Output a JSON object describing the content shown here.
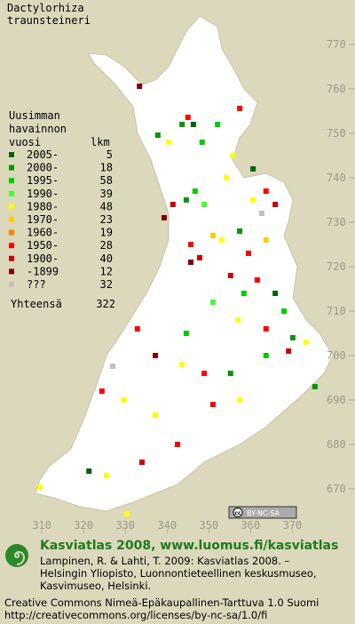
{
  "map": {
    "title": [
      "Dactylorhiza",
      "traunsteineri"
    ],
    "xlim": [
      300,
      385
    ],
    "ylim": [
      662,
      780
    ],
    "xticks": [
      310,
      320,
      330,
      340,
      350,
      360,
      370
    ],
    "yticks": [
      670,
      680,
      690,
      700,
      710,
      720,
      730,
      740,
      750,
      760,
      770
    ],
    "legend": {
      "heading": [
        "Uusimman",
        "havainnon"
      ],
      "year_header": "vuosi",
      "count_header": "lkm",
      "classes": [
        {
          "label": "2005-",
          "count": 5,
          "color": "#006400"
        },
        {
          "label": "2000-",
          "count": 18,
          "color": "#009900"
        },
        {
          "label": "1995-",
          "count": 58,
          "color": "#00cc00"
        },
        {
          "label": "1990-",
          "count": 39,
          "color": "#44ff33"
        },
        {
          "label": "1980-",
          "count": 48,
          "color": "#ffff00"
        },
        {
          "label": "1970-",
          "count": 23,
          "color": "#ffcc00"
        },
        {
          "label": "1960-",
          "count": 19,
          "color": "#ff8000"
        },
        {
          "label": "1950-",
          "count": 28,
          "color": "#ff0000"
        },
        {
          "label": "1900-",
          "count": 40,
          "color": "#cc0000"
        },
        {
          "label": "-1899",
          "count": 12,
          "color": "#800000"
        },
        {
          "label": "???",
          "count": 32,
          "color": "#c0c0c0"
        }
      ],
      "total_label": "Yhteensä",
      "total": 322
    },
    "observations": [
      {
        "x": 333.4,
        "y": 760.6,
        "class": 9
      },
      {
        "x": 345.0,
        "y": 753.6,
        "class": 7
      },
      {
        "x": 343.6,
        "y": 752.0,
        "class": 1
      },
      {
        "x": 346.3,
        "y": 752.0,
        "class": 0
      },
      {
        "x": 357.4,
        "y": 755.6,
        "class": 7
      },
      {
        "x": 352.1,
        "y": 752.0,
        "class": 2
      },
      {
        "x": 340.4,
        "y": 748.0,
        "class": 4
      },
      {
        "x": 337.8,
        "y": 749.6,
        "class": 1
      },
      {
        "x": 348.4,
        "y": 748.0,
        "class": 2
      },
      {
        "x": 355.7,
        "y": 745.0,
        "class": 4
      },
      {
        "x": 360.6,
        "y": 742.0,
        "class": 0
      },
      {
        "x": 354.2,
        "y": 740.0,
        "class": 4
      },
      {
        "x": 346.7,
        "y": 737.0,
        "class": 2
      },
      {
        "x": 344.6,
        "y": 735.0,
        "class": 1
      },
      {
        "x": 348.9,
        "y": 734.0,
        "class": 3
      },
      {
        "x": 341.4,
        "y": 734.0,
        "class": 8
      },
      {
        "x": 339.3,
        "y": 731.0,
        "class": 9
      },
      {
        "x": 363.7,
        "y": 737.0,
        "class": 7
      },
      {
        "x": 365.9,
        "y": 734.0,
        "class": 8
      },
      {
        "x": 362.7,
        "y": 732.0,
        "class": 10
      },
      {
        "x": 360.6,
        "y": 735.0,
        "class": 4
      },
      {
        "x": 351.0,
        "y": 727.0,
        "class": 5
      },
      {
        "x": 353.1,
        "y": 726.0,
        "class": 4
      },
      {
        "x": 357.4,
        "y": 728.0,
        "class": 1
      },
      {
        "x": 345.7,
        "y": 725.0,
        "class": 7
      },
      {
        "x": 347.8,
        "y": 722.0,
        "class": 8
      },
      {
        "x": 345.7,
        "y": 721.0,
        "class": 9
      },
      {
        "x": 363.7,
        "y": 726.0,
        "class": 5
      },
      {
        "x": 359.5,
        "y": 723.0,
        "class": 7
      },
      {
        "x": 355.2,
        "y": 718.0,
        "class": 8
      },
      {
        "x": 361.6,
        "y": 717.0,
        "class": 7
      },
      {
        "x": 358.4,
        "y": 714.0,
        "class": 2
      },
      {
        "x": 351.0,
        "y": 712.0,
        "class": 3
      },
      {
        "x": 365.9,
        "y": 714.0,
        "class": 0
      },
      {
        "x": 368.0,
        "y": 710.0,
        "class": 2
      },
      {
        "x": 370.1,
        "y": 704.0,
        "class": 1
      },
      {
        "x": 373.3,
        "y": 703.0,
        "class": 4
      },
      {
        "x": 363.7,
        "y": 706.0,
        "class": 7
      },
      {
        "x": 357.0,
        "y": 708.0,
        "class": 4
      },
      {
        "x": 344.6,
        "y": 705.0,
        "class": 2
      },
      {
        "x": 332.9,
        "y": 706.0,
        "class": 7
      },
      {
        "x": 337.2,
        "y": 700.0,
        "class": 9
      },
      {
        "x": 343.6,
        "y": 698.0,
        "class": 4
      },
      {
        "x": 327.0,
        "y": 697.6,
        "class": 10
      },
      {
        "x": 348.9,
        "y": 696.0,
        "class": 7
      },
      {
        "x": 355.2,
        "y": 696.0,
        "class": 1
      },
      {
        "x": 363.7,
        "y": 700.0,
        "class": 2
      },
      {
        "x": 375.4,
        "y": 693.0,
        "class": 1
      },
      {
        "x": 324.4,
        "y": 692.0,
        "class": 7
      },
      {
        "x": 329.7,
        "y": 690.0,
        "class": 4
      },
      {
        "x": 337.2,
        "y": 686.6,
        "class": 4
      },
      {
        "x": 351.0,
        "y": 689.0,
        "class": 7
      },
      {
        "x": 357.4,
        "y": 690.0,
        "class": 4
      },
      {
        "x": 342.5,
        "y": 680.0,
        "class": 7
      },
      {
        "x": 334.0,
        "y": 676.0,
        "class": 8
      },
      {
        "x": 325.5,
        "y": 673.0,
        "class": 4
      },
      {
        "x": 309.6,
        "y": 670.4,
        "class": 4
      },
      {
        "x": 330.4,
        "y": 664.4,
        "class": 4
      },
      {
        "x": 321.3,
        "y": 674.0,
        "class": 0
      },
      {
        "x": 369.1,
        "y": 701.0,
        "class": 8
      }
    ]
  },
  "badge": {
    "cc": "cc",
    "text": "BY-NC-SA"
  },
  "footer": {
    "title": "Kasviatlas 2008, www.luomus.fi/kasviatlas",
    "citation": [
      "Lampinen, R. & Lahti, T. 2009: Kasviatlas 2008. –",
      "Helsingin Yliopisto, Luonnontieteellinen keskusmuseo,",
      "Kasvimuseo, Helsinki."
    ],
    "license": [
      "Creative Commons Nimeä-Epäkaupallinen-Tarttuva 1.0 Suomi",
      "http://creativecommons.org/licenses/by-nc-sa/1.0/fi"
    ]
  }
}
